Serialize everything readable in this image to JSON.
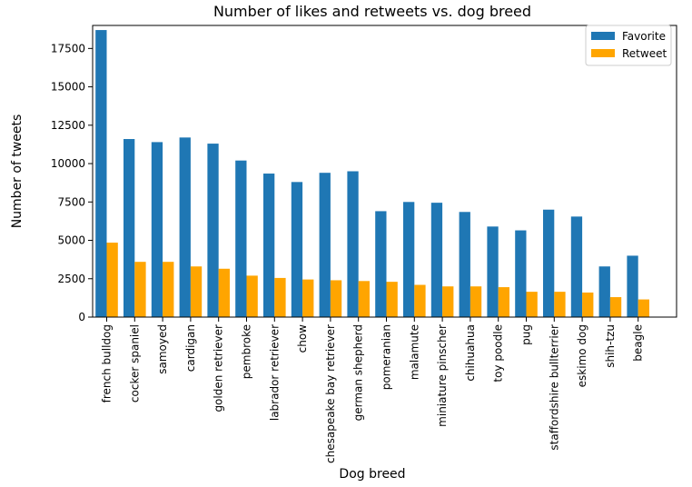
{
  "chart_data": {
    "type": "bar",
    "title": "Number of likes and retweets vs. dog breed",
    "xlabel": "Dog breed",
    "ylabel": "Number of tweets",
    "ylim": [
      0,
      19000
    ],
    "yticks": [
      0,
      2500,
      5000,
      7500,
      10000,
      12500,
      15000,
      17500
    ],
    "grid": false,
    "legend_position": "top-right",
    "categories": [
      "french bulldog",
      "cocker spaniel",
      "samoyed",
      "cardigan",
      "golden retriever",
      "pembroke",
      "labrador retriever",
      "chow",
      "chesapeake bay retriever",
      "german shepherd",
      "pomeranian",
      "malamute",
      "miniature pinscher",
      "chihuahua",
      "toy poodle",
      "pug",
      "staffordshire bullterrier",
      "eskimo dog",
      "shih-tzu",
      "beagle"
    ],
    "series": [
      {
        "name": "Favorite",
        "color": "#1f77b4",
        "values": [
          18700,
          11600,
          11400,
          11700,
          11300,
          10200,
          9350,
          8800,
          9400,
          9500,
          6900,
          7500,
          7450,
          6850,
          5900,
          5650,
          7000,
          6550,
          3300,
          4000
        ]
      },
      {
        "name": "Retweet",
        "color": "#ffa500",
        "values": [
          4850,
          3600,
          3600,
          3300,
          3150,
          2700,
          2550,
          2450,
          2400,
          2350,
          2300,
          2100,
          2000,
          2000,
          1950,
          1650,
          1650,
          1600,
          1300,
          1150
        ]
      }
    ]
  }
}
